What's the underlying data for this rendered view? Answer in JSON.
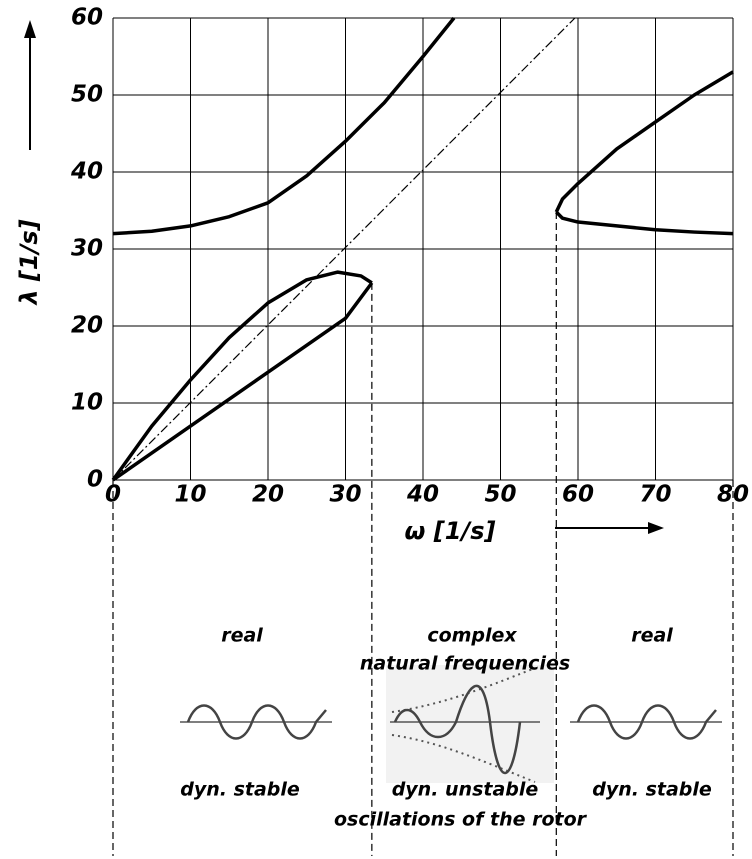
{
  "chart_data": {
    "type": "line",
    "xlabel": "ω [1/s]",
    "ylabel": "λ [1/s]",
    "xlim": [
      0,
      80
    ],
    "ylim": [
      0,
      60
    ],
    "xticks": [
      0,
      10,
      20,
      30,
      40,
      50,
      60,
      70,
      80
    ],
    "yticks": [
      0,
      10,
      20,
      30,
      40,
      50,
      60
    ],
    "grid": true,
    "series": [
      {
        "color": "#000",
        "style": "solid",
        "x": [
          0,
          5,
          10,
          15,
          20,
          25,
          30,
          35,
          40,
          44
        ],
        "values": [
          32,
          32.3,
          33,
          34.2,
          36,
          39.5,
          44,
          49,
          55,
          60
        ]
      },
      {
        "color": "#000",
        "style": "dashdot",
        "x": [
          0,
          59.6
        ],
        "values": [
          0,
          60
        ]
      },
      {
        "color": "#000",
        "style": "solid",
        "x": [
          0,
          5,
          10,
          15,
          20,
          25,
          29,
          32,
          33.4
        ],
        "values": [
          0,
          7,
          13,
          18.5,
          23,
          26,
          27,
          26.5,
          25.6
        ]
      },
      {
        "color": "#000",
        "style": "solid",
        "x": [
          0,
          10,
          20,
          30,
          33.4
        ],
        "values": [
          0,
          7,
          14,
          21,
          25.6
        ]
      },
      {
        "color": "#000",
        "style": "solid",
        "x": [
          57.2,
          58,
          60,
          65,
          70,
          75,
          80
        ],
        "values": [
          34.8,
          36.5,
          38.5,
          43,
          46.5,
          50,
          53
        ]
      },
      {
        "color": "#000",
        "style": "solid",
        "x": [
          57.2,
          58,
          60,
          65,
          70,
          75,
          80
        ],
        "values": [
          34.8,
          34,
          33.5,
          33,
          32.5,
          32.2,
          32
        ]
      }
    ],
    "vlines": [
      {
        "x": 0,
        "y": 0
      },
      {
        "x": 33.4,
        "y": 25.6
      },
      {
        "x": 57.2,
        "y": 34.8
      },
      {
        "x": 80,
        "y": 0
      }
    ],
    "annotations": [
      "real",
      "complex",
      "natural frequencies",
      "real",
      "dyn. stable",
      "dyn. unstable",
      "dyn. stable",
      "oscillations of the rotor"
    ]
  }
}
